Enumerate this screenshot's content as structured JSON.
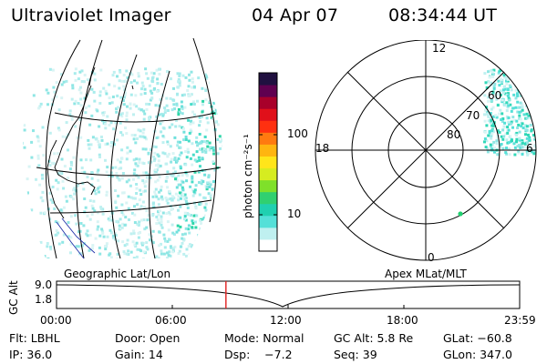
{
  "header": {
    "instrument": "Ultraviolet Imager",
    "date": "04 Apr 07",
    "time": "08:34:44 UT"
  },
  "colorbar": {
    "unit_label": "photon cm⁻²s⁻¹",
    "tick_labels": [
      "100",
      "10"
    ],
    "colors": [
      "#ffffff",
      "#bff0f0",
      "#55e0d8",
      "#20d0b0",
      "#30d070",
      "#7fe02a",
      "#d6ec20",
      "#ffe51a",
      "#ffb510",
      "#ff7a10",
      "#ff3010",
      "#e0101a",
      "#a8002a",
      "#600050",
      "#201040"
    ]
  },
  "polar": {
    "mlt_labels": {
      "top": "12",
      "left": "18",
      "right": "6",
      "bottom": "0"
    },
    "lat_labels": [
      "60",
      "70",
      "80"
    ]
  },
  "timeline": {
    "left_title": "Geographic Lat/Lon",
    "right_title": "Apex MLat/MLT",
    "axis_label": "GC Alt",
    "y_ticks": [
      "9.0",
      "1.8"
    ],
    "x_ticks": [
      "00:00",
      "06:00",
      "12:00",
      "18:00",
      "23:59"
    ],
    "current_time_fraction": 0.3658
  },
  "info": {
    "filter": "Flt: LBHL",
    "door": "Door: Open",
    "mode": "Mode: Normal",
    "gc_alt": "GC Alt: 5.8 Re",
    "glat": "GLat: −60.8",
    "ip": "IP: 36.0",
    "gain": "Gain: 14",
    "dsp": "Dsp:    −7.2",
    "seq": "Seq: 39",
    "glon": "GLon: 347.0"
  }
}
